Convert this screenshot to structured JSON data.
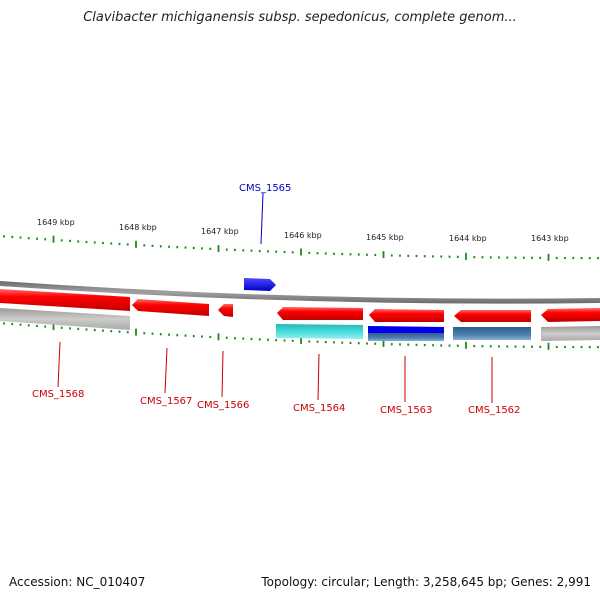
{
  "title": "Clavibacter michiganensis subsp. sepedonicus, complete genom...",
  "footer": {
    "accession": "Accession: NC_010407",
    "summary": "Topology: circular; Length: 3,258,645 bp; Genes: 2,991"
  },
  "ticks": [
    {
      "label": "1649 kbp"
    },
    {
      "label": "1648 kbp"
    },
    {
      "label": "1647 kbp"
    },
    {
      "label": "1646 kbp"
    },
    {
      "label": "1645 kbp"
    },
    {
      "label": "1644 kbp"
    },
    {
      "label": "1643 kbp"
    }
  ],
  "genes": [
    {
      "label": "CMS_1565",
      "color": "#0000cc"
    },
    {
      "label": "CMS_1568",
      "color": "#cc0000"
    },
    {
      "label": "CMS_1567",
      "color": "#cc0000"
    },
    {
      "label": "CMS_1566",
      "color": "#cc0000"
    },
    {
      "label": "CMS_1564",
      "color": "#cc0000"
    },
    {
      "label": "CMS_1563",
      "color": "#cc0000"
    },
    {
      "label": "CMS_1562",
      "color": "#cc0000"
    }
  ],
  "colors": {
    "cds": "#ff0000",
    "forward_gene": "#0000ff",
    "tick": "#1a8a1a",
    "backbone": "#808080",
    "feature_gray": "#b0b0b0",
    "feature_cyan": "#33cccc",
    "feature_blue": "#0000ee",
    "feature_steel": "#4477aa"
  }
}
